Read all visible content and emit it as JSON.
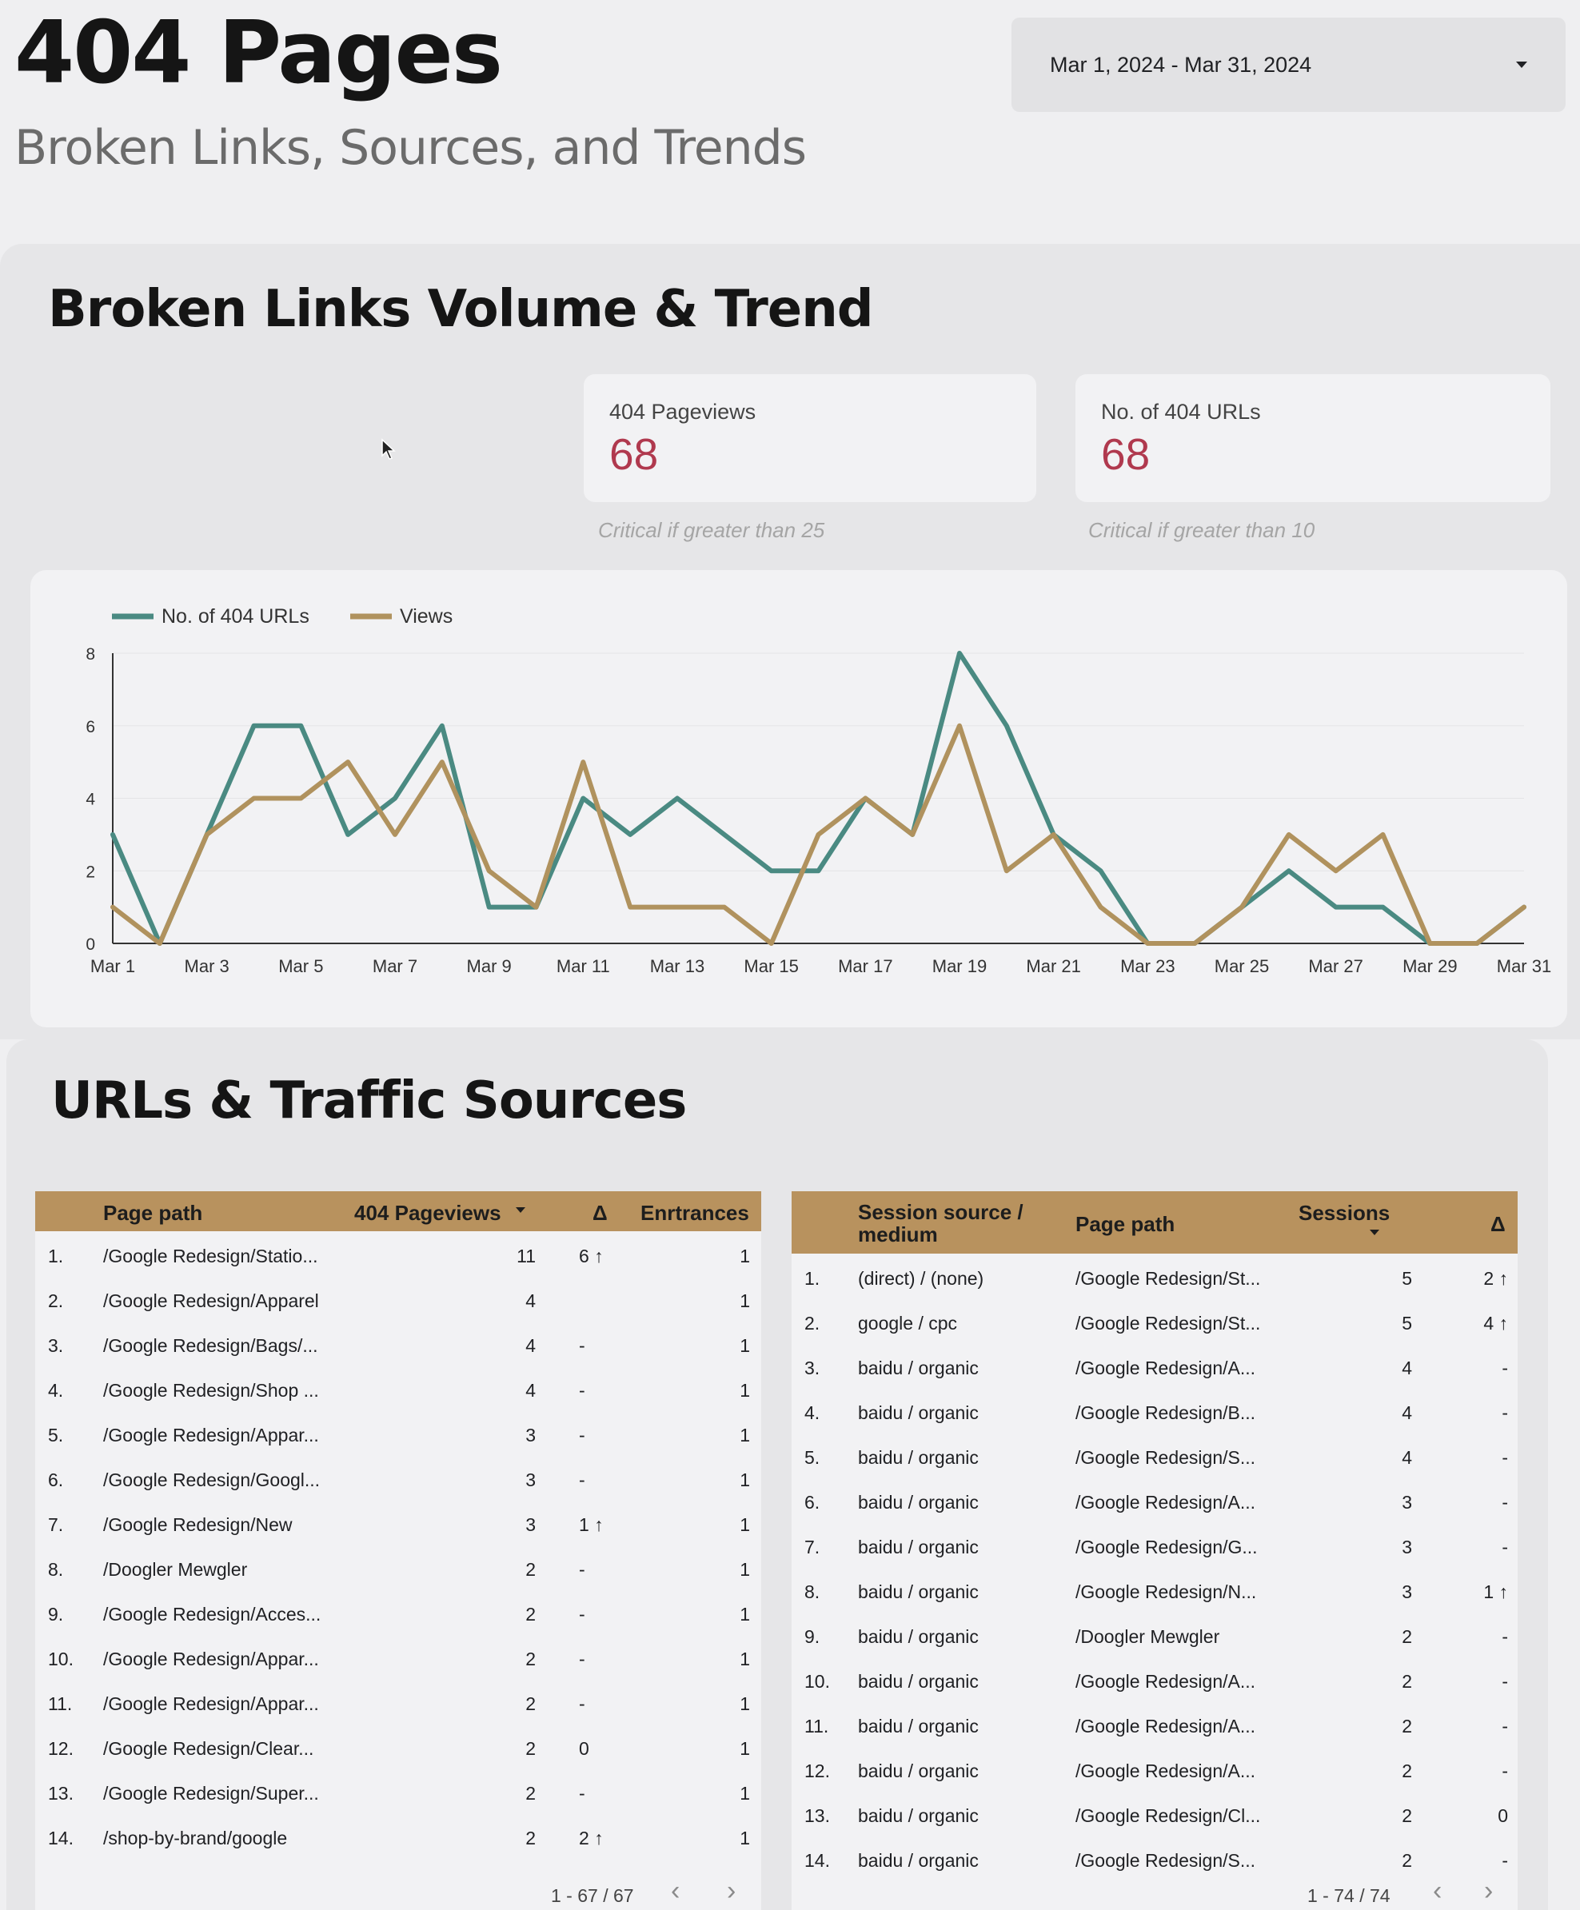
{
  "header": {
    "title": "404 Pages",
    "subtitle": "Broken Links, Sources, and Trends",
    "date_range": "Mar 1, 2024 - Mar 31, 2024"
  },
  "section1": {
    "title": "Broken Links Volume & Trend",
    "kpis": [
      {
        "label": "404 Pageviews",
        "value": "68",
        "note": "Critical if greater than 25"
      },
      {
        "label": "No. of 404 URLs",
        "value": "68",
        "note": "Critical if greater than 10"
      }
    ]
  },
  "chart_data": {
    "type": "line",
    "x": [
      "Mar 1",
      "Mar 2",
      "Mar 3",
      "Mar 4",
      "Mar 5",
      "Mar 6",
      "Mar 7",
      "Mar 8",
      "Mar 9",
      "Mar 10",
      "Mar 11",
      "Mar 12",
      "Mar 13",
      "Mar 14",
      "Mar 15",
      "Mar 16",
      "Mar 17",
      "Mar 18",
      "Mar 19",
      "Mar 20",
      "Mar 21",
      "Mar 22",
      "Mar 23",
      "Mar 24",
      "Mar 25",
      "Mar 26",
      "Mar 27",
      "Mar 28",
      "Mar 29",
      "Mar 30",
      "Mar 31"
    ],
    "x_tick_labels": [
      "Mar 1",
      "Mar 3",
      "Mar 5",
      "Mar 7",
      "Mar 9",
      "Mar 11",
      "Mar 13",
      "Mar 15",
      "Mar 17",
      "Mar 19",
      "Mar 21",
      "Mar 23",
      "Mar 25",
      "Mar 27",
      "Mar 29",
      "Mar 31"
    ],
    "y_ticks": [
      "0",
      "2",
      "4",
      "6",
      "8"
    ],
    "ylim": [
      0,
      8
    ],
    "legend_position": "top-left",
    "series": [
      {
        "name": "No. of 404 URLs",
        "color": "#4a8a82",
        "values": [
          3,
          0,
          3,
          6,
          6,
          3,
          4,
          6,
          1,
          1,
          4,
          3,
          4,
          3,
          2,
          2,
          4,
          3,
          8,
          6,
          3,
          2,
          0,
          0,
          1,
          2,
          1,
          1,
          0,
          0,
          1
        ]
      },
      {
        "name": "Views",
        "color": "#b0925e",
        "values": [
          1,
          0,
          3,
          4,
          4,
          5,
          3,
          5,
          2,
          1,
          5,
          1,
          1,
          1,
          0,
          3,
          4,
          3,
          6,
          2,
          3,
          1,
          0,
          0,
          1,
          3,
          2,
          3,
          0,
          0,
          1
        ]
      }
    ]
  },
  "section2": {
    "title": "URLs & Traffic Sources",
    "table1": {
      "columns": [
        "Page path",
        "404 Pageviews",
        "Δ",
        "Enrtrances"
      ],
      "sort_icon": "caret-down-icon",
      "rows": [
        [
          "1.",
          "/Google Redesign/Statio...",
          "11",
          "6 ↑",
          "1"
        ],
        [
          "2.",
          "/Google Redesign/Apparel",
          "4",
          "",
          "1"
        ],
        [
          "3.",
          "/Google Redesign/Bags/...",
          "4",
          "-",
          "1"
        ],
        [
          "4.",
          "/Google Redesign/Shop ...",
          "4",
          "-",
          "1"
        ],
        [
          "5.",
          "/Google Redesign/Appar...",
          "3",
          "-",
          "1"
        ],
        [
          "6.",
          "/Google Redesign/Googl...",
          "3",
          "-",
          "1"
        ],
        [
          "7.",
          "/Google Redesign/New",
          "3",
          "1 ↑",
          "1"
        ],
        [
          "8.",
          "/Doogler Mewgler",
          "2",
          "-",
          "1"
        ],
        [
          "9.",
          "/Google Redesign/Acces...",
          "2",
          "-",
          "1"
        ],
        [
          "10.",
          "/Google Redesign/Appar...",
          "2",
          "-",
          "1"
        ],
        [
          "11.",
          "/Google Redesign/Appar...",
          "2",
          "-",
          "1"
        ],
        [
          "12.",
          "/Google Redesign/Clear...",
          "2",
          "0",
          "1"
        ],
        [
          "13.",
          "/Google Redesign/Super...",
          "2",
          "-",
          "1"
        ],
        [
          "14.",
          "/shop-by-brand/google",
          "2",
          "2 ↑",
          "1"
        ]
      ],
      "pagination": "1 - 67 / 67"
    },
    "table2": {
      "columns": [
        "Session source / medium",
        "Page path",
        "Sessions",
        "Δ"
      ],
      "rows": [
        [
          "1.",
          "(direct) / (none)",
          "/Google Redesign/St...",
          "5",
          "2 ↑"
        ],
        [
          "2.",
          "google / cpc",
          "/Google Redesign/St...",
          "5",
          "4 ↑"
        ],
        [
          "3.",
          "baidu / organic",
          "/Google Redesign/A...",
          "4",
          "-"
        ],
        [
          "4.",
          "baidu / organic",
          "/Google Redesign/B...",
          "4",
          "-"
        ],
        [
          "5.",
          "baidu / organic",
          "/Google Redesign/S...",
          "4",
          "-"
        ],
        [
          "6.",
          "baidu / organic",
          "/Google Redesign/A...",
          "3",
          "-"
        ],
        [
          "7.",
          "baidu / organic",
          "/Google Redesign/G...",
          "3",
          "-"
        ],
        [
          "8.",
          "baidu / organic",
          "/Google Redesign/N...",
          "3",
          "1 ↑"
        ],
        [
          "9.",
          "baidu / organic",
          "/Doogler Mewgler",
          "2",
          "-"
        ],
        [
          "10.",
          "baidu / organic",
          "/Google Redesign/A...",
          "2",
          "-"
        ],
        [
          "11.",
          "baidu / organic",
          "/Google Redesign/A...",
          "2",
          "-"
        ],
        [
          "12.",
          "baidu / organic",
          "/Google Redesign/A...",
          "2",
          "-"
        ],
        [
          "13.",
          "baidu / organic",
          "/Google Redesign/Cl...",
          "2",
          "0"
        ],
        [
          "14.",
          "baidu / organic",
          "/Google Redesign/S...",
          "2",
          "-"
        ]
      ],
      "pagination": "1 - 74 / 74"
    },
    "pager_prev": "‹",
    "pager_next": "›"
  }
}
